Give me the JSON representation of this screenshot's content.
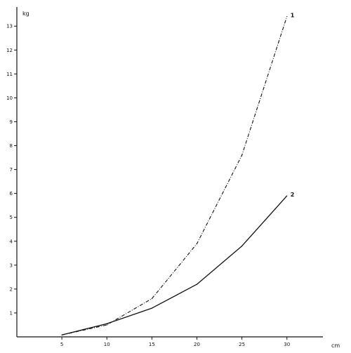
{
  "chart_data": {
    "type": "line",
    "title": "",
    "xlabel": "cm",
    "ylabel": "kg",
    "xlim": [
      0,
      34
    ],
    "ylim": [
      0,
      13.8
    ],
    "x_ticks": [
      5,
      10,
      15,
      20,
      25,
      30
    ],
    "x_tick_labels": [
      "5",
      "10",
      "15",
      "20",
      "25",
      "30"
    ],
    "y_ticks": [
      1,
      2,
      3,
      4,
      5,
      6,
      7,
      8,
      9,
      10,
      11,
      12,
      13
    ],
    "y_tick_labels": [
      "1",
      "2",
      "3",
      "4",
      "5",
      "6",
      "7",
      "8",
      "9",
      "10",
      "11",
      "12",
      "13"
    ],
    "grid": false,
    "legend": "none",
    "series": [
      {
        "name": "1",
        "style": "dash-dot",
        "color": "#111111",
        "x": [
          5,
          10,
          15,
          20,
          25,
          30
        ],
        "y": [
          0.08,
          0.5,
          1.6,
          3.9,
          7.6,
          13.4
        ]
      },
      {
        "name": "2",
        "style": "solid",
        "color": "#111111",
        "x": [
          5,
          10,
          15,
          20,
          25,
          30
        ],
        "y": [
          0.08,
          0.55,
          1.2,
          2.2,
          3.8,
          5.9
        ]
      }
    ]
  }
}
